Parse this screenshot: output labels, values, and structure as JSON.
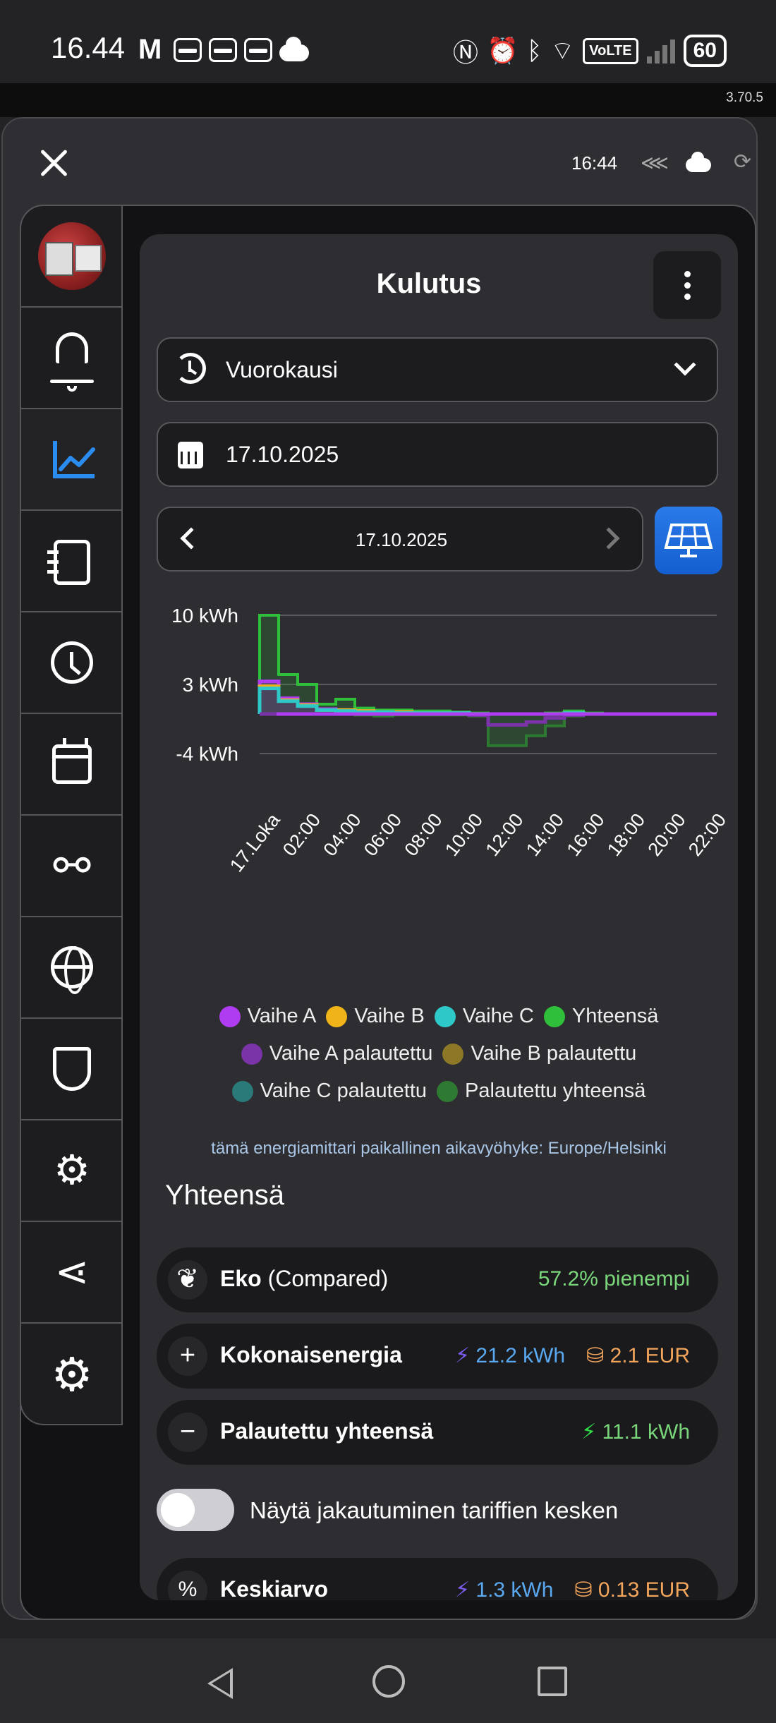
{
  "statusbar": {
    "time": "16.44",
    "battery": "60",
    "volte": "VoLTE"
  },
  "version": "3.70.5",
  "dialog": {
    "time": "16:44"
  },
  "card": {
    "title": "Kulutus",
    "period_select": "Vuorokausi",
    "date_field": "17.10.2025",
    "date_nav_label": "17.10.2025"
  },
  "chart_data": {
    "type": "line",
    "ylabels": [
      "10 kWh",
      "3 kWh",
      "-4 kWh"
    ],
    "ylim": [
      -4,
      10
    ],
    "x_labels": [
      "17.Loka",
      "02:00",
      "04:00",
      "06:00",
      "08:00",
      "10:00",
      "12:00",
      "14:00",
      "16:00",
      "18:00",
      "20:00",
      "22:00"
    ],
    "x_hours": [
      0,
      1,
      2,
      3,
      4,
      5,
      6,
      7,
      8,
      9,
      10,
      11,
      12,
      13,
      14,
      15,
      16,
      17,
      18,
      19,
      20,
      21,
      22,
      23
    ],
    "series": [
      {
        "name": "Yhteensä",
        "color": "#2fbf3a",
        "values": [
          10,
          4,
          3,
          1,
          1.5,
          0.6,
          0.4,
          0.4,
          0.3,
          0.3,
          0.2,
          0.1,
          0,
          0,
          0,
          0.1,
          0.3,
          0.1,
          0,
          0,
          0,
          0,
          0,
          0
        ]
      },
      {
        "name": "Vaihe A",
        "color": "#b03cf2",
        "values": [
          3.3,
          1.6,
          1.0,
          0.5,
          0.4,
          0.3,
          0.2,
          0.2,
          0.1,
          0.1,
          0.1,
          0.0,
          0,
          0,
          0,
          0,
          0.1,
          0,
          0,
          0,
          0,
          0,
          0,
          0
        ]
      },
      {
        "name": "Vaihe B",
        "color": "#f0b418",
        "values": [
          2.8,
          1.4,
          0.9,
          0.4,
          0.4,
          0.3,
          0.2,
          0.2,
          0.1,
          0.1,
          0.1,
          0.0,
          0,
          0,
          0,
          0,
          0.1,
          0,
          0,
          0,
          0,
          0,
          0,
          0
        ]
      },
      {
        "name": "Vaihe C",
        "color": "#2ec8c8",
        "values": [
          2.6,
          1.3,
          0.8,
          0.4,
          0.3,
          0.2,
          0.2,
          0.1,
          0.1,
          0.1,
          0.1,
          0.0,
          0,
          0,
          0,
          0,
          0.1,
          0,
          0,
          0,
          0,
          0,
          0,
          0
        ]
      },
      {
        "name": "Palautettu yhteensä",
        "color": "#2f7a32",
        "values": [
          0,
          0,
          0,
          0,
          0,
          -0.1,
          -0.2,
          -0.1,
          -0.1,
          -0.1,
          -0.1,
          -0.2,
          -3.2,
          -3.2,
          -2.2,
          -1.2,
          -0.2,
          0,
          0,
          0,
          0,
          0,
          0,
          0
        ]
      },
      {
        "name": "Vaihe A palautettu",
        "color": "#7a34a8",
        "values": [
          0,
          0,
          0,
          0,
          0,
          0,
          0,
          0,
          0,
          0,
          0,
          -0.1,
          -1.1,
          -1.1,
          -0.8,
          -0.4,
          -0.1,
          0,
          0,
          0,
          0,
          0,
          0,
          0
        ]
      }
    ]
  },
  "legend": [
    [
      {
        "label": "Vaihe A",
        "color": "#b03cf2"
      },
      {
        "label": "Vaihe B",
        "color": "#f0b418"
      },
      {
        "label": "Vaihe C",
        "color": "#2ec8c8"
      },
      {
        "label": "Yhteensä",
        "color": "#2fbf3a"
      }
    ],
    [
      {
        "label": "Vaihe A palautettu",
        "color": "#7a34a8"
      },
      {
        "label": "Vaihe B palautettu",
        "color": "#8c7826"
      }
    ],
    [
      {
        "label": "Vaihe C palautettu",
        "color": "#2a7a7a"
      },
      {
        "label": "Palautettu yhteensä",
        "color": "#2f7a32"
      }
    ]
  ],
  "timezone_note": "tämä energiamittari paikallinen aikavyöhyke: Europe/Helsinki",
  "summary": {
    "title": "Yhteensä",
    "eko": {
      "label": "Eko",
      "sub": "(Compared)",
      "value": "57.2% pienempi"
    },
    "total": {
      "label": "Kokonaisenergia",
      "energy": "21.2 kWh",
      "cost": "2.1 EUR"
    },
    "returned": {
      "label": "Palautettu yhteensä",
      "energy": "11.1 kWh"
    },
    "toggle_label": "Näytä jakautuminen tariffien kesken",
    "average": {
      "label": "Keskiarvo",
      "energy": "1.3 kWh",
      "cost": "0.13 EUR"
    }
  }
}
